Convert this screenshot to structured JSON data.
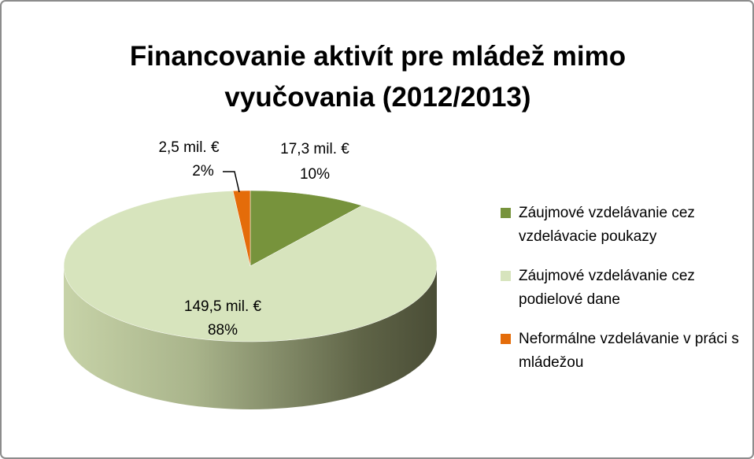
{
  "chart_data": {
    "type": "pie",
    "title": "Financovanie aktivít pre mládež mimo vyučovania (2012/2013)",
    "categories": [
      "Záujmové vzdelávanie cez vzdelávacie poukazy",
      "Záujmové vzdelávanie cez podielové dane",
      "Neformálne vzdelávanie v práci s mládežou"
    ],
    "values": [
      17.3,
      149.5,
      2.5
    ],
    "value_labels": [
      "17,3 mil. €",
      "149,5 mil. €",
      "2,5 mil. €"
    ],
    "percents": [
      10,
      88,
      2
    ],
    "percent_labels": [
      "10%",
      "88%",
      "2%"
    ],
    "colors": [
      "#77933c",
      "#d7e4bd",
      "#e46c0a"
    ],
    "legend": "right"
  }
}
